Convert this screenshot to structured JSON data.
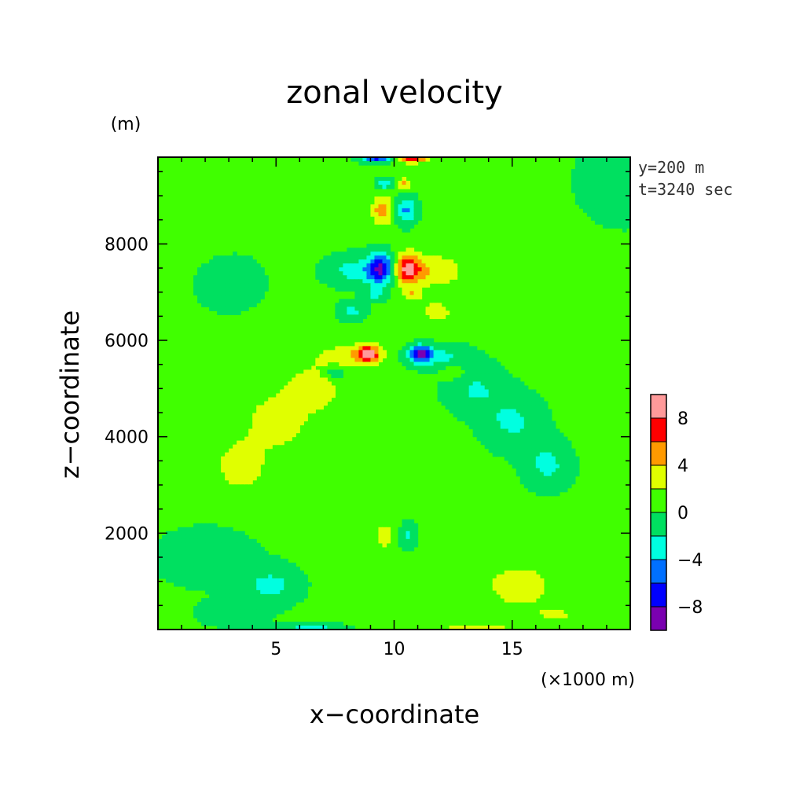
{
  "chart_data": {
    "type": "heatmap",
    "title": "zonal velocity",
    "xlabel": "x−coordinate",
    "ylabel": "z−coordinate",
    "x_unit": "(×1000 m)",
    "y_unit": "(m)",
    "xlim": [
      0,
      20
    ],
    "ylim": [
      0,
      9800
    ],
    "x_ticks": [
      5,
      10,
      15
    ],
    "x_tick_labels": [
      "5",
      "10",
      "15"
    ],
    "y_ticks": [
      2000,
      4000,
      6000,
      8000
    ],
    "y_tick_labels": [
      "2000",
      "4000",
      "6000",
      "8000"
    ],
    "annotations": [
      "y=200 m",
      "t=3240 sec"
    ],
    "colorbar": {
      "levels": [
        -10,
        -8,
        -6,
        -4,
        -2,
        0,
        2,
        4,
        6,
        8,
        10
      ],
      "tick_values": [
        -8,
        -4,
        0,
        4,
        8
      ],
      "tick_labels": [
        "−8",
        "−4",
        "0",
        "4",
        "8"
      ],
      "colors": [
        "#7a00b0",
        "#0000ff",
        "#0070ff",
        "#00ffe0",
        "#00e060",
        "#40ff00",
        "#e0ff00",
        "#ff9a00",
        "#ff0000",
        "#ff9a9a"
      ]
    },
    "background_value": 0.5,
    "features": [
      {
        "x": 15.2,
        "z": 900,
        "sx": 0.8,
        "sz": 250,
        "amp": 3.0
      },
      {
        "x": 4.8,
        "z": 900,
        "sx": 0.8,
        "sz": 250,
        "amp": -3.0
      },
      {
        "x": 3.2,
        "z": 300,
        "sx": 1.0,
        "sz": 180,
        "amp": -1.5
      },
      {
        "x": 16.8,
        "z": 300,
        "sx": 1.0,
        "sz": 180,
        "amp": 1.5
      },
      {
        "x": 9.6,
        "z": 1950,
        "sx": 0.25,
        "sz": 180,
        "amp": 2.8
      },
      {
        "x": 10.6,
        "z": 1950,
        "sx": 0.25,
        "sz": 180,
        "amp": -2.8
      },
      {
        "x": 3.5,
        "z": 3400,
        "sx": 0.7,
        "sz": 350,
        "amp": 3.0
      },
      {
        "x": 5.0,
        "z": 4300,
        "sx": 0.9,
        "sz": 400,
        "amp": 2.8
      },
      {
        "x": 6.6,
        "z": 5000,
        "sx": 0.9,
        "sz": 350,
        "amp": 2.6
      },
      {
        "x": 16.5,
        "z": 3400,
        "sx": 0.7,
        "sz": 350,
        "amp": -3.0
      },
      {
        "x": 15.0,
        "z": 4300,
        "sx": 0.9,
        "sz": 400,
        "amp": -2.8
      },
      {
        "x": 13.4,
        "z": 5000,
        "sx": 0.9,
        "sz": 350,
        "amp": -2.6
      },
      {
        "x": 8.0,
        "z": 5650,
        "sx": 0.9,
        "sz": 180,
        "amp": 2.8
      },
      {
        "x": 12.0,
        "z": 5650,
        "sx": 0.9,
        "sz": 180,
        "amp": -2.8
      },
      {
        "x": 8.9,
        "z": 5720,
        "sx": 0.35,
        "sz": 120,
        "amp": 8.0
      },
      {
        "x": 11.1,
        "z": 5720,
        "sx": 0.35,
        "sz": 120,
        "amp": -8.0
      },
      {
        "x": 7.5,
        "z": 5350,
        "sx": 0.35,
        "sz": 110,
        "amp": -3.0
      },
      {
        "x": 12.5,
        "z": 5350,
        "sx": 0.35,
        "sz": 110,
        "amp": 3.0
      },
      {
        "x": 9.5,
        "z": 7480,
        "sx": 0.45,
        "sz": 220,
        "amp": -9.0
      },
      {
        "x": 10.5,
        "z": 7480,
        "sx": 0.45,
        "sz": 220,
        "amp": 8.5
      },
      {
        "x": 8.2,
        "z": 7450,
        "sx": 0.8,
        "sz": 230,
        "amp": -3.0
      },
      {
        "x": 11.8,
        "z": 7450,
        "sx": 0.8,
        "sz": 230,
        "amp": 3.0
      },
      {
        "x": 9.5,
        "z": 8700,
        "sx": 0.3,
        "sz": 200,
        "amp": 5.0
      },
      {
        "x": 10.5,
        "z": 8700,
        "sx": 0.3,
        "sz": 200,
        "amp": -5.0
      },
      {
        "x": 9.6,
        "z": 9250,
        "sx": 0.25,
        "sz": 80,
        "amp": -4.0
      },
      {
        "x": 10.4,
        "z": 9250,
        "sx": 0.25,
        "sz": 80,
        "amp": 4.0
      },
      {
        "x": 9.3,
        "z": 9800,
        "sx": 0.5,
        "sz": 70,
        "amp": -8.0
      },
      {
        "x": 10.7,
        "z": 9800,
        "sx": 0.5,
        "sz": 70,
        "amp": 8.0
      },
      {
        "x": 9.2,
        "z": 6950,
        "sx": 0.3,
        "sz": 100,
        "amp": -3.0
      },
      {
        "x": 10.8,
        "z": 6950,
        "sx": 0.3,
        "sz": 100,
        "amp": 3.0
      },
      {
        "x": 8.2,
        "z": 6600,
        "sx": 0.4,
        "sz": 140,
        "amp": -3.0
      },
      {
        "x": 11.8,
        "z": 6600,
        "sx": 0.4,
        "sz": 140,
        "amp": 3.0
      },
      {
        "x": 3.0,
        "z": 7200,
        "sx": 1.5,
        "sz": 600,
        "amp": -0.9
      },
      {
        "x": 17.0,
        "z": 7200,
        "sx": 1.5,
        "sz": 600,
        "amp": 0.9
      },
      {
        "x": 0.5,
        "z": 9300,
        "sx": 1.5,
        "sz": 800,
        "amp": 1.2
      },
      {
        "x": 19.5,
        "z": 9300,
        "sx": 1.5,
        "sz": 800,
        "amp": -1.2
      },
      {
        "x": 2.0,
        "z": 1500,
        "sx": 2.5,
        "sz": 700,
        "amp": -0.8
      },
      {
        "x": 18.0,
        "z": 1500,
        "sx": 2.5,
        "sz": 700,
        "amp": 0.8
      },
      {
        "x": 6.5,
        "z": 40,
        "sx": 1.0,
        "sz": 60,
        "amp": -3.0
      },
      {
        "x": 13.5,
        "z": 40,
        "sx": 1.0,
        "sz": 60,
        "amp": 3.0
      }
    ]
  }
}
